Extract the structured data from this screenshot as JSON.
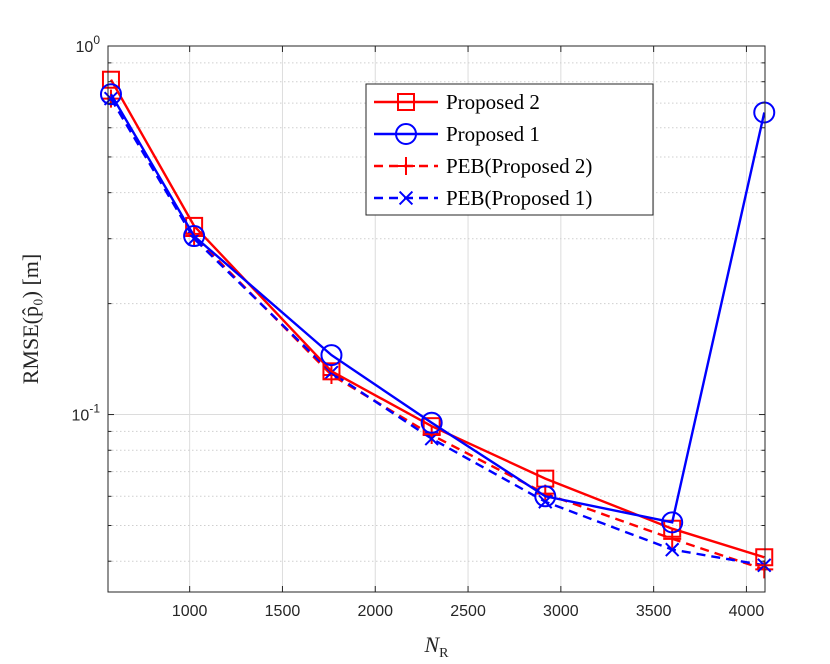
{
  "chart_data": {
    "type": "line",
    "title": "",
    "xlabel": "N",
    "xlabel_sub": "R",
    "ylabel": "RMSE(p̂₀) [m]",
    "yscale": "log",
    "xlim": [
      560,
      4100
    ],
    "ylim": [
      0.033,
      1.0
    ],
    "grid": true,
    "minor_grid": true,
    "x_ticks": [
      1000,
      1500,
      2000,
      2500,
      3000,
      3500,
      4000
    ],
    "x_tick_labels": [
      "1000",
      "1500",
      "2000",
      "2500",
      "3000",
      "3500",
      "4000"
    ],
    "y_ticks": [
      {
        "value": 1.0,
        "base": "10",
        "exp": "0"
      },
      {
        "value": 0.1,
        "base": "10",
        "exp": "-1"
      }
    ],
    "legend_position": "top-right",
    "series": [
      {
        "name": "Proposed 2",
        "color": "#ff0000",
        "line": "solid",
        "marker": "square",
        "x": [
          576,
          1024,
          1764,
          2304,
          2916,
          3600,
          4096
        ],
        "y": [
          0.81,
          0.325,
          0.131,
          0.093,
          0.067,
          0.049,
          0.041
        ]
      },
      {
        "name": "Proposed 1",
        "color": "#0000ff",
        "line": "solid",
        "marker": "circle",
        "x": [
          576,
          1024,
          1764,
          2304,
          2916,
          3600,
          4096
        ],
        "y": [
          0.74,
          0.305,
          0.145,
          0.095,
          0.06,
          0.051,
          0.66
        ]
      },
      {
        "name": "PEB(Proposed 2)",
        "color": "#ff0000",
        "line": "dashed",
        "marker": "plus",
        "x": [
          576,
          1024,
          1764,
          2304,
          2916,
          3600,
          4096
        ],
        "y": [
          0.72,
          0.305,
          0.128,
          0.088,
          0.061,
          0.046,
          0.038
        ]
      },
      {
        "name": "PEB(Proposed 1)",
        "color": "#0000ff",
        "line": "dashed",
        "marker": "x",
        "x": [
          576,
          1024,
          1764,
          2304,
          2916,
          3600,
          4096
        ],
        "y": [
          0.72,
          0.3,
          0.13,
          0.086,
          0.058,
          0.043,
          0.039
        ]
      }
    ]
  }
}
